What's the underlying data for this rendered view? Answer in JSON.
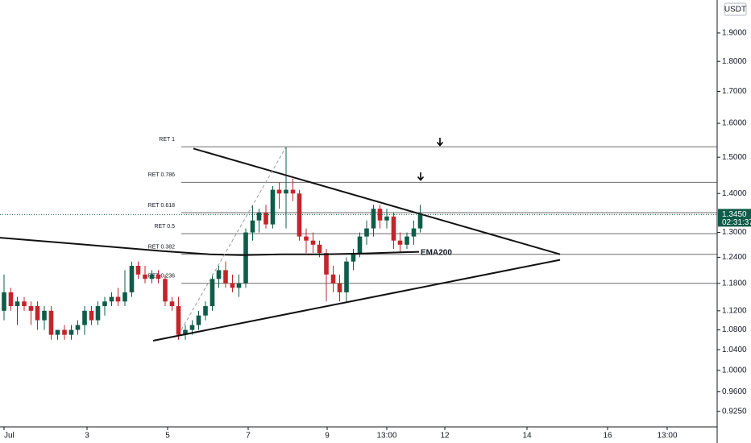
{
  "chart_data": {
    "type": "candlestick",
    "currency": "USDT",
    "log_scale": true,
    "grid": false,
    "up_color": "#0e5c49",
    "down_color": "#c2252b",
    "x": [
      0.94,
      1.11,
      1.27,
      1.44,
      1.61,
      1.77,
      1.94,
      2.11,
      2.27,
      2.44,
      2.61,
      2.77,
      2.94,
      3.11,
      3.27,
      3.44,
      3.61,
      3.77,
      3.94,
      4.11,
      4.27,
      4.44,
      4.61,
      4.77,
      4.94,
      5.11,
      5.27,
      5.44,
      5.61,
      5.77,
      5.94,
      6.11,
      6.27,
      6.44,
      6.61,
      6.77,
      6.94,
      7.11,
      7.27,
      7.44,
      7.61,
      7.77,
      7.94,
      8.11,
      8.27,
      8.44,
      8.61,
      8.77,
      8.94,
      9.11,
      9.27,
      9.44,
      9.61,
      9.77,
      9.94,
      10.11,
      10.27,
      10.44,
      10.61,
      10.77,
      10.94,
      11.11,
      11.27
    ],
    "open": [
      1.12,
      1.16,
      1.13,
      1.14,
      1.13,
      1.13,
      1.1,
      1.12,
      1.07,
      1.08,
      1.07,
      1.08,
      1.09,
      1.12,
      1.1,
      1.13,
      1.14,
      1.15,
      1.14,
      1.16,
      1.22,
      1.2,
      1.19,
      1.2,
      1.19,
      1.14,
      1.13,
      1.07,
      1.08,
      1.09,
      1.11,
      1.13,
      1.19,
      1.21,
      1.18,
      1.17,
      1.18,
      1.3,
      1.33,
      1.35,
      1.32,
      1.41,
      1.4,
      1.41,
      1.4,
      1.29,
      1.28,
      1.27,
      1.25,
      1.2,
      1.18,
      1.16,
      1.23,
      1.25,
      1.29,
      1.31,
      1.36,
      1.33,
      1.34,
      1.28,
      1.27,
      1.29,
      1.31
    ],
    "high": [
      1.2,
      1.17,
      1.15,
      1.15,
      1.14,
      1.14,
      1.13,
      1.13,
      1.08,
      1.09,
      1.09,
      1.1,
      1.13,
      1.13,
      1.14,
      1.15,
      1.16,
      1.17,
      1.21,
      1.23,
      1.23,
      1.22,
      1.21,
      1.21,
      1.2,
      1.15,
      1.15,
      1.09,
      1.1,
      1.12,
      1.14,
      1.2,
      1.22,
      1.23,
      1.2,
      1.2,
      1.31,
      1.37,
      1.36,
      1.37,
      1.42,
      1.43,
      1.53,
      1.44,
      1.41,
      1.31,
      1.3,
      1.28,
      1.26,
      1.22,
      1.2,
      1.24,
      1.26,
      1.3,
      1.33,
      1.37,
      1.37,
      1.36,
      1.35,
      1.3,
      1.3,
      1.33,
      1.37
    ],
    "low": [
      1.1,
      1.12,
      1.09,
      1.12,
      1.09,
      1.08,
      1.08,
      1.06,
      1.06,
      1.06,
      1.06,
      1.07,
      1.07,
      1.09,
      1.09,
      1.11,
      1.13,
      1.13,
      1.13,
      1.15,
      1.19,
      1.18,
      1.18,
      1.18,
      1.13,
      1.12,
      1.06,
      1.06,
      1.07,
      1.08,
      1.1,
      1.12,
      1.17,
      1.17,
      1.16,
      1.15,
      1.17,
      1.28,
      1.3,
      1.31,
      1.31,
      1.36,
      1.31,
      1.38,
      1.28,
      1.25,
      1.25,
      1.24,
      1.14,
      1.16,
      1.14,
      1.14,
      1.21,
      1.24,
      1.27,
      1.29,
      1.31,
      1.31,
      1.26,
      1.25,
      1.26,
      1.27,
      1.3
    ],
    "close": [
      1.16,
      1.13,
      1.14,
      1.13,
      1.12,
      1.1,
      1.12,
      1.07,
      1.08,
      1.07,
      1.08,
      1.09,
      1.12,
      1.1,
      1.13,
      1.14,
      1.15,
      1.14,
      1.16,
      1.22,
      1.2,
      1.19,
      1.2,
      1.19,
      1.14,
      1.13,
      1.07,
      1.08,
      1.09,
      1.11,
      1.13,
      1.19,
      1.21,
      1.18,
      1.17,
      1.18,
      1.3,
      1.33,
      1.35,
      1.32,
      1.41,
      1.4,
      1.41,
      1.4,
      1.29,
      1.28,
      1.27,
      1.25,
      1.2,
      1.18,
      1.16,
      1.23,
      1.25,
      1.29,
      1.31,
      1.36,
      1.33,
      1.34,
      1.28,
      1.27,
      1.29,
      1.31,
      1.345
    ],
    "xlim": [
      0.84,
      18.64
    ],
    "xticks": [
      {
        "value": 0.94,
        "label": "Jul"
      },
      3,
      5,
      7,
      {
        "value": 8.96,
        "label": "9"
      },
      {
        "value": 10.44,
        "label": "13:00"
      },
      {
        "value": 11.88,
        "label": "12"
      },
      {
        "value": 13.92,
        "label": "14"
      },
      {
        "value": 15.92,
        "label": "16"
      },
      {
        "value": 17.4,
        "label": "13:00"
      }
    ],
    "ylim": [
      0.898,
      2.023
    ],
    "yticks": [
      {
        "value": 0.925,
        "label": "0.9250"
      },
      {
        "value": 0.96,
        "label": "0.9600"
      },
      {
        "value": 1,
        "label": "1.0000"
      },
      {
        "value": 1.04,
        "label": "1.0400"
      },
      {
        "value": 1.08,
        "label": "1.0800"
      },
      {
        "value": 1.12,
        "label": "1.1200"
      },
      {
        "value": 1.18,
        "label": "1.1800"
      },
      {
        "value": 1.24,
        "label": "1.2400"
      },
      {
        "value": 1.3,
        "label": "1.3000"
      },
      {
        "value": 1.4,
        "label": "1.4000"
      },
      {
        "value": 1.5,
        "label": "1.5000"
      },
      {
        "value": 1.6,
        "label": "1.6000"
      },
      {
        "value": 1.7,
        "label": "1.7000"
      },
      {
        "value": 1.8,
        "label": "1.8000"
      },
      {
        "value": 1.9,
        "label": "1.9000"
      }
    ],
    "fib_start_x": 5.34,
    "fib_levels": [
      {
        "label": "RET 1",
        "value": 1.53
      },
      {
        "label": "RET 0.786",
        "value": 1.43
      },
      {
        "label": "RET 0.618",
        "value": 1.35
      },
      {
        "label": "RET 0.5",
        "value": 1.297
      },
      {
        "label": "RET 0.382",
        "value": 1.247
      },
      {
        "label": "RET 0.236",
        "value": 1.18
      }
    ],
    "lines": [
      {
        "name": "EMA200",
        "color": "#111111",
        "x": [
          0.84,
          2.84,
          4.84,
          6.04,
          6.84,
          7.84,
          8.84,
          9.84,
          11.24
        ],
        "y": [
          1.287,
          1.271,
          1.255,
          1.247,
          1.245,
          1.247,
          1.247,
          1.249,
          1.253
        ]
      },
      {
        "color": "#111111",
        "x": [
          5.64,
          14.74
        ],
        "y": [
          1.525,
          1.247
        ]
      },
      {
        "color": "#111111",
        "x": [
          4.64,
          14.74
        ],
        "y": [
          1.058,
          1.234
        ]
      },
      {
        "color": "#9a9a9a",
        "dashed": true,
        "x": [
          5.34,
          7.94
        ],
        "y": [
          1.08,
          1.53
        ]
      }
    ],
    "last_price": {
      "value": 1.345,
      "label": "1.3450"
    },
    "countdown": "02:31:37"
  }
}
